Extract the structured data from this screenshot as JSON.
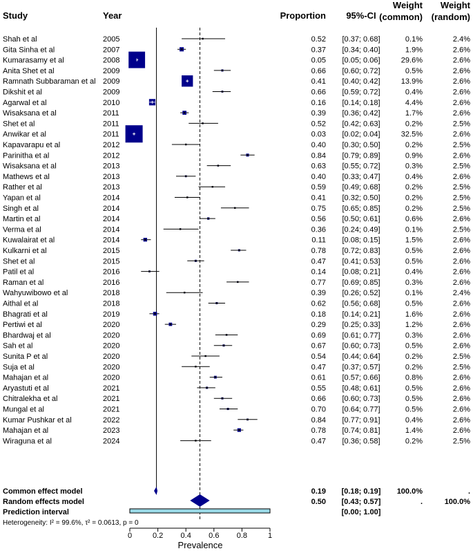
{
  "headers": {
    "study": "Study",
    "year": "Year",
    "proportion": "Proportion",
    "ci": "95%-CI",
    "weight_common_1": "Weight",
    "weight_common_2": "(common)",
    "weight_random_1": "Weight",
    "weight_random_2": "(random)"
  },
  "studies": [
    {
      "name": "Shah et al",
      "year": "2005",
      "prop": 0.52,
      "lo": 0.37,
      "hi": 0.68,
      "prop_text": "0.52",
      "ci_text": "[0.37; 0.68]",
      "wc": "0.1%",
      "wr": "2.4%"
    },
    {
      "name": "Gita Sinha et al",
      "year": "2007",
      "prop": 0.37,
      "lo": 0.34,
      "hi": 0.4,
      "prop_text": "0.37",
      "ci_text": "[0.34; 0.40]",
      "wc": "1.9%",
      "wr": "2.6%"
    },
    {
      "name": "Kumarasamy et al",
      "year": "2008",
      "prop": 0.05,
      "lo": 0.05,
      "hi": 0.06,
      "prop_text": "0.05",
      "ci_text": "[0.05; 0.06]",
      "wc": "29.6%",
      "wr": "2.6%"
    },
    {
      "name": "Anita Shet et al",
      "year": "2009",
      "prop": 0.66,
      "lo": 0.6,
      "hi": 0.72,
      "prop_text": "0.66",
      "ci_text": "[0.60; 0.72]",
      "wc": "0.5%",
      "wr": "2.6%"
    },
    {
      "name": "Ramnath Subbaraman et al",
      "year": "2009",
      "prop": 0.41,
      "lo": 0.4,
      "hi": 0.42,
      "prop_text": "0.41",
      "ci_text": "[0.40; 0.42]",
      "wc": "13.9%",
      "wr": "2.6%"
    },
    {
      "name": "Dikshit et al",
      "year": "2009",
      "prop": 0.66,
      "lo": 0.59,
      "hi": 0.72,
      "prop_text": "0.66",
      "ci_text": "[0.59; 0.72]",
      "wc": "0.4%",
      "wr": "2.6%"
    },
    {
      "name": "Agarwal et al",
      "year": "2010",
      "prop": 0.16,
      "lo": 0.14,
      "hi": 0.18,
      "prop_text": "0.16",
      "ci_text": "[0.14; 0.18]",
      "wc": "4.4%",
      "wr": "2.6%"
    },
    {
      "name": "Wisaksana et al",
      "year": "2011",
      "prop": 0.39,
      "lo": 0.36,
      "hi": 0.42,
      "prop_text": "0.39",
      "ci_text": "[0.36; 0.42]",
      "wc": "1.7%",
      "wr": "2.6%"
    },
    {
      "name": "Shet et al",
      "year": "2011",
      "prop": 0.52,
      "lo": 0.42,
      "hi": 0.63,
      "prop_text": "0.52",
      "ci_text": "[0.42; 0.63]",
      "wc": "0.2%",
      "wr": "2.5%"
    },
    {
      "name": "Anwikar et al",
      "year": "2011",
      "prop": 0.03,
      "lo": 0.02,
      "hi": 0.04,
      "prop_text": "0.03",
      "ci_text": "[0.02; 0.04]",
      "wc": "32.5%",
      "wr": "2.6%"
    },
    {
      "name": "Kapavarapu et al",
      "year": "2012",
      "prop": 0.4,
      "lo": 0.3,
      "hi": 0.5,
      "prop_text": "0.40",
      "ci_text": "[0.30; 0.50]",
      "wc": "0.2%",
      "wr": "2.5%"
    },
    {
      "name": "Parinitha et al",
      "year": "2012",
      "prop": 0.84,
      "lo": 0.79,
      "hi": 0.89,
      "prop_text": "0.84",
      "ci_text": "[0.79; 0.89]",
      "wc": "0.9%",
      "wr": "2.6%"
    },
    {
      "name": "Wisaksana et al",
      "year": "2013",
      "prop": 0.63,
      "lo": 0.55,
      "hi": 0.72,
      "prop_text": "0.63",
      "ci_text": "[0.55; 0.72]",
      "wc": "0.3%",
      "wr": "2.5%"
    },
    {
      "name": "Mathews et al",
      "year": "2013",
      "prop": 0.4,
      "lo": 0.33,
      "hi": 0.47,
      "prop_text": "0.40",
      "ci_text": "[0.33; 0.47]",
      "wc": "0.4%",
      "wr": "2.6%"
    },
    {
      "name": "Rather et al",
      "year": "2013",
      "prop": 0.59,
      "lo": 0.49,
      "hi": 0.68,
      "prop_text": "0.59",
      "ci_text": "[0.49; 0.68]",
      "wc": "0.2%",
      "wr": "2.5%"
    },
    {
      "name": "Yapan et al",
      "year": "2014",
      "prop": 0.41,
      "lo": 0.32,
      "hi": 0.5,
      "prop_text": "0.41",
      "ci_text": "[0.32; 0.50]",
      "wc": "0.2%",
      "wr": "2.5%"
    },
    {
      "name": "Singh et al",
      "year": "2014",
      "prop": 0.75,
      "lo": 0.65,
      "hi": 0.85,
      "prop_text": "0.75",
      "ci_text": "[0.65; 0.85]",
      "wc": "0.2%",
      "wr": "2.5%"
    },
    {
      "name": "Martin et al",
      "year": "2014",
      "prop": 0.56,
      "lo": 0.5,
      "hi": 0.61,
      "prop_text": "0.56",
      "ci_text": "[0.50; 0.61]",
      "wc": "0.6%",
      "wr": "2.6%"
    },
    {
      "name": "Verma et al",
      "year": "2014",
      "prop": 0.36,
      "lo": 0.24,
      "hi": 0.49,
      "prop_text": "0.36",
      "ci_text": "[0.24; 0.49]",
      "wc": "0.1%",
      "wr": "2.5%"
    },
    {
      "name": "Kuwalairat et al",
      "year": "2014",
      "prop": 0.11,
      "lo": 0.08,
      "hi": 0.15,
      "prop_text": "0.11",
      "ci_text": "[0.08; 0.15]",
      "wc": "1.5%",
      "wr": "2.6%"
    },
    {
      "name": "Kulkarni et al",
      "year": "2015",
      "prop": 0.78,
      "lo": 0.72,
      "hi": 0.83,
      "prop_text": "0.78",
      "ci_text": "[0.72; 0.83]",
      "wc": "0.5%",
      "wr": "2.6%"
    },
    {
      "name": "Shet et al",
      "year": "2015",
      "prop": 0.47,
      "lo": 0.41,
      "hi": 0.53,
      "prop_text": "0.47",
      "ci_text": "[0.41; 0.53]",
      "wc": "0.5%",
      "wr": "2.6%"
    },
    {
      "name": "Patil et al",
      "year": "2016",
      "prop": 0.14,
      "lo": 0.08,
      "hi": 0.21,
      "prop_text": "0.14",
      "ci_text": "[0.08; 0.21]",
      "wc": "0.4%",
      "wr": "2.6%"
    },
    {
      "name": "Raman et al",
      "year": "2016",
      "prop": 0.77,
      "lo": 0.69,
      "hi": 0.85,
      "prop_text": "0.77",
      "ci_text": "[0.69; 0.85]",
      "wc": "0.3%",
      "wr": "2.6%"
    },
    {
      "name": "Wahyuwibowo et al",
      "year": "2018",
      "prop": 0.39,
      "lo": 0.26,
      "hi": 0.52,
      "prop_text": "0.39",
      "ci_text": "[0.26; 0.52]",
      "wc": "0.1%",
      "wr": "2.4%"
    },
    {
      "name": "Aithal et al",
      "year": "2018",
      "prop": 0.62,
      "lo": 0.56,
      "hi": 0.68,
      "prop_text": "0.62",
      "ci_text": "[0.56; 0.68]",
      "wc": "0.5%",
      "wr": "2.6%"
    },
    {
      "name": "Bhagrati et al",
      "year": "2019",
      "prop": 0.18,
      "lo": 0.14,
      "hi": 0.21,
      "prop_text": "0.18",
      "ci_text": "[0.14; 0.21]",
      "wc": "1.6%",
      "wr": "2.6%"
    },
    {
      "name": "Pertiwi et al",
      "year": "2020",
      "prop": 0.29,
      "lo": 0.25,
      "hi": 0.33,
      "prop_text": "0.29",
      "ci_text": "[0.25; 0.33]",
      "wc": "1.2%",
      "wr": "2.6%"
    },
    {
      "name": "Bhardwaj et al",
      "year": "2020",
      "prop": 0.69,
      "lo": 0.61,
      "hi": 0.77,
      "prop_text": "0.69",
      "ci_text": "[0.61; 0.77]",
      "wc": "0.3%",
      "wr": "2.6%"
    },
    {
      "name": "Sah et al",
      "year": "2020",
      "prop": 0.67,
      "lo": 0.6,
      "hi": 0.73,
      "prop_text": "0.67",
      "ci_text": "[0.60; 0.73]",
      "wc": "0.5%",
      "wr": "2.6%"
    },
    {
      "name": "Sunita P et al",
      "year": "2020",
      "prop": 0.54,
      "lo": 0.44,
      "hi": 0.64,
      "prop_text": "0.54",
      "ci_text": "[0.44; 0.64]",
      "wc": "0.2%",
      "wr": "2.5%"
    },
    {
      "name": "Suja et al",
      "year": "2020",
      "prop": 0.47,
      "lo": 0.37,
      "hi": 0.57,
      "prop_text": "0.47",
      "ci_text": "[0.37; 0.57]",
      "wc": "0.2%",
      "wr": "2.5%"
    },
    {
      "name": "Mahajan et al",
      "year": "2020",
      "prop": 0.61,
      "lo": 0.57,
      "hi": 0.66,
      "prop_text": "0.61",
      "ci_text": "[0.57; 0.66]",
      "wc": "0.8%",
      "wr": "2.6%"
    },
    {
      "name": "Aryastuti et al",
      "year": "2021",
      "prop": 0.55,
      "lo": 0.48,
      "hi": 0.61,
      "prop_text": "0.55",
      "ci_text": "[0.48; 0.61]",
      "wc": "0.5%",
      "wr": "2.6%"
    },
    {
      "name": "Chitralekha et al",
      "year": "2021",
      "prop": 0.66,
      "lo": 0.6,
      "hi": 0.73,
      "prop_text": "0.66",
      "ci_text": "[0.60; 0.73]",
      "wc": "0.5%",
      "wr": "2.6%"
    },
    {
      "name": "Mungal et al",
      "year": "2021",
      "prop": 0.7,
      "lo": 0.64,
      "hi": 0.77,
      "prop_text": "0.70",
      "ci_text": "[0.64; 0.77]",
      "wc": "0.5%",
      "wr": "2.6%"
    },
    {
      "name": "Kumar Pushkar et al",
      "year": "2022",
      "prop": 0.84,
      "lo": 0.77,
      "hi": 0.91,
      "prop_text": "0.84",
      "ci_text": "[0.77; 0.91]",
      "wc": "0.4%",
      "wr": "2.6%"
    },
    {
      "name": "Mahajan et al",
      "year": "2023",
      "prop": 0.78,
      "lo": 0.74,
      "hi": 0.81,
      "prop_text": "0.78",
      "ci_text": "[0.74; 0.81]",
      "wc": "1.4%",
      "wr": "2.6%"
    },
    {
      "name": "Wiraguna et al",
      "year": "2024",
      "prop": 0.47,
      "lo": 0.36,
      "hi": 0.58,
      "prop_text": "0.47",
      "ci_text": "[0.36; 0.58]",
      "wc": "0.2%",
      "wr": "2.5%"
    }
  ],
  "summary": {
    "common": {
      "label": "Common effect model",
      "est": 0.19,
      "lo": 0.18,
      "hi": 0.19,
      "prop_text": "0.19",
      "ci_text": "[0.18; 0.19]",
      "wc": "100.0%",
      "wr": "."
    },
    "random": {
      "label": "Random effects model",
      "est": 0.5,
      "lo": 0.43,
      "hi": 0.57,
      "prop_text": "0.50",
      "ci_text": "[0.43; 0.57]",
      "wc": ".",
      "wr": "100.0%"
    },
    "prediction": {
      "label": "Prediction interval",
      "lo": 0.0,
      "hi": 1.0,
      "ci_text": "[0.00; 1.00]"
    }
  },
  "heterogeneity": "Heterogeneity: I² = 99.6%, τ² = 0.0613, p = 0",
  "chart_data": {
    "type": "scatter",
    "title": "",
    "xlabel": "Prevalence",
    "ylabel": "",
    "xlim": [
      0,
      1
    ],
    "xticks": [
      0,
      0.2,
      0.4,
      0.6,
      0.8,
      1
    ],
    "xtick_labels": [
      "0",
      "0.2",
      "0.4",
      "0.6",
      "0.8",
      "1"
    ],
    "reference_line": 0.19,
    "reference_line_2": 0.5
  },
  "colors": {
    "square": "#00008b",
    "diamond": "#00008b",
    "prediction_fill": "#9ad9e6",
    "white_tick": "#ffffff"
  }
}
